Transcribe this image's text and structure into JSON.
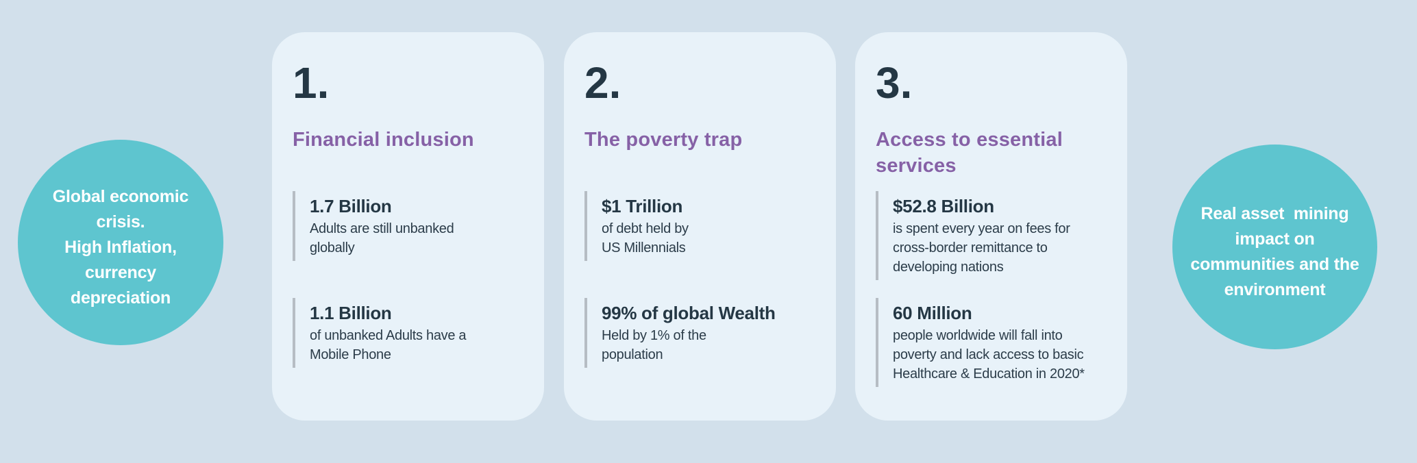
{
  "colors": {
    "background": "#d2e0eb",
    "card_background": "#e8f2f9",
    "bubble_teal": "#5ec5cf",
    "heading_purple": "#8661a6",
    "text_dark": "#243744",
    "stat_bar_gray": "#b6bdc4"
  },
  "left_bubble": {
    "text": "Global economic\ncrisis.\nHigh Inflation,\ncurrency\ndepreciation"
  },
  "right_bubble": {
    "text": "Real asset  mining\nimpact on\ncommunities and the\nenvironment"
  },
  "cards": [
    {
      "number": "1.",
      "title": "Financial inclusion",
      "stats": [
        {
          "value": "1.7 Billion",
          "desc": "Adults are still unbanked\nglobally"
        },
        {
          "value": "1.1 Billion",
          "desc": "of unbanked Adults have a\nMobile Phone"
        }
      ]
    },
    {
      "number": "2.",
      "title": "The poverty trap",
      "stats": [
        {
          "value": "$1 Trillion",
          "desc": "of debt held by\nUS Millennials"
        },
        {
          "value": "99% of global Wealth",
          "desc": "Held by 1% of the\npopulation"
        }
      ]
    },
    {
      "number": "3.",
      "title": "Access to essential\nservices",
      "stats": [
        {
          "value": "$52.8 Billion",
          "desc": "is spent every year on fees for\ncross-border remittance to\ndeveloping nations"
        },
        {
          "value": "60 Million",
          "desc": "people worldwide will fall into\npoverty and lack access to basic\nHealthcare & Education in 2020*"
        }
      ]
    }
  ]
}
